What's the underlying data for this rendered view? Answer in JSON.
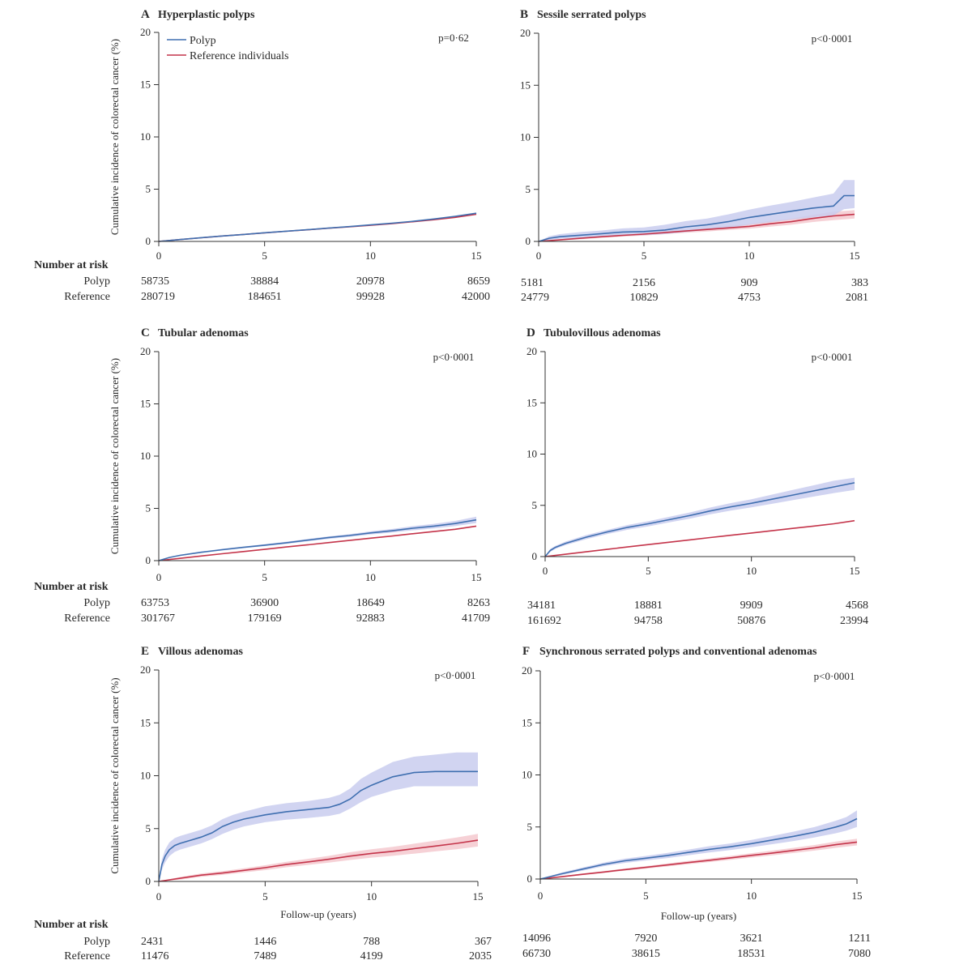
{
  "figure": {
    "ylabel": "Cumulative incidence of colorectal cancer (%)",
    "xlabel": "Follow-up (years)",
    "risk_header": "Number at risk",
    "risk_row_polyp": "Polyp",
    "risk_row_reference": "Reference",
    "legend": {
      "polyp": "Polyp",
      "reference": "Reference individuals"
    },
    "colors": {
      "polyp": "#3f6fb0",
      "reference": "#c4344a",
      "polyp_ci": "#c9cdef",
      "reference_ci": "#f5c9cf"
    }
  },
  "chart_data": [
    {
      "type": "line",
      "letter": "A",
      "title": "Hyperplastic polyps",
      "pvalue": "p=0·62",
      "xlim": [
        0,
        15
      ],
      "ylim": [
        0,
        20
      ],
      "xticks": [
        0,
        5,
        10,
        15
      ],
      "yticks": [
        0,
        5,
        10,
        15,
        20
      ],
      "legend": true,
      "ci_polyp": false,
      "ci_reference": false,
      "series": [
        {
          "name": "Polyp",
          "x": [
            0,
            1,
            2,
            3,
            4,
            5,
            6,
            7,
            8,
            9,
            10,
            11,
            12,
            13,
            14,
            15
          ],
          "y": [
            0,
            0.18,
            0.36,
            0.52,
            0.67,
            0.83,
            0.98,
            1.12,
            1.27,
            1.42,
            1.58,
            1.74,
            1.92,
            2.15,
            2.4,
            2.7
          ]
        },
        {
          "name": "Reference individuals",
          "x": [
            0,
            1,
            2,
            3,
            4,
            5,
            6,
            7,
            8,
            9,
            10,
            11,
            12,
            13,
            14,
            15
          ],
          "y": [
            0,
            0.18,
            0.35,
            0.52,
            0.67,
            0.82,
            0.97,
            1.11,
            1.26,
            1.4,
            1.54,
            1.7,
            1.88,
            2.08,
            2.3,
            2.6
          ]
        }
      ],
      "risk": {
        "years": [
          0,
          5,
          10,
          15
        ],
        "polyp": [
          "58735",
          "38884",
          "20978",
          "8659"
        ],
        "reference": [
          "280719",
          "184651",
          "99928",
          "42000"
        ]
      }
    },
    {
      "type": "line",
      "letter": "B",
      "title": "Sessile serrated polyps",
      "pvalue": "p<0·0001",
      "xlim": [
        0,
        15
      ],
      "ylim": [
        0,
        20
      ],
      "xticks": [
        0,
        5,
        10,
        15
      ],
      "yticks": [
        0,
        5,
        10,
        15,
        20
      ],
      "legend": false,
      "ci_polyp": true,
      "ci_reference": true,
      "series": [
        {
          "name": "Polyp",
          "x": [
            0,
            0.5,
            1,
            2,
            3,
            4,
            5,
            6,
            7,
            8,
            9,
            10,
            11,
            12,
            13,
            14,
            14.5,
            15
          ],
          "y": [
            0,
            0.3,
            0.45,
            0.6,
            0.75,
            0.9,
            0.95,
            1.1,
            1.4,
            1.6,
            1.9,
            2.3,
            2.6,
            2.9,
            3.2,
            3.4,
            4.4,
            4.4
          ],
          "lower": [
            0,
            0.15,
            0.25,
            0.35,
            0.45,
            0.55,
            0.6,
            0.7,
            0.9,
            1.1,
            1.3,
            1.6,
            1.85,
            2.1,
            2.3,
            2.5,
            3.1,
            3.2
          ],
          "upper": [
            0,
            0.5,
            0.7,
            0.9,
            1.05,
            1.25,
            1.35,
            1.6,
            1.95,
            2.2,
            2.6,
            3.05,
            3.45,
            3.8,
            4.2,
            4.6,
            5.9,
            5.9
          ]
        },
        {
          "name": "Reference individuals",
          "x": [
            0,
            1,
            2,
            3,
            4,
            5,
            6,
            7,
            8,
            9,
            10,
            11,
            12,
            13,
            14,
            15
          ],
          "y": [
            0,
            0.15,
            0.3,
            0.45,
            0.58,
            0.7,
            0.85,
            1.0,
            1.15,
            1.3,
            1.45,
            1.7,
            1.9,
            2.2,
            2.45,
            2.6
          ],
          "lower": [
            0,
            0.1,
            0.22,
            0.35,
            0.47,
            0.57,
            0.7,
            0.83,
            0.96,
            1.1,
            1.22,
            1.42,
            1.6,
            1.86,
            2.05,
            2.2
          ],
          "upper": [
            0,
            0.2,
            0.38,
            0.55,
            0.7,
            0.83,
            1.0,
            1.17,
            1.34,
            1.5,
            1.68,
            1.98,
            2.2,
            2.55,
            2.85,
            3.0
          ]
        }
      ],
      "risk": {
        "years": [
          0,
          5,
          10,
          15
        ],
        "polyp": [
          "5181",
          "2156",
          "909",
          "383"
        ],
        "reference": [
          "24779",
          "10829",
          "4753",
          "2081"
        ]
      }
    },
    {
      "type": "line",
      "letter": "C",
      "title": "Tubular adenomas",
      "pvalue": "p<0·0001",
      "xlim": [
        0,
        15
      ],
      "ylim": [
        0,
        20
      ],
      "xticks": [
        0,
        5,
        10,
        15
      ],
      "yticks": [
        0,
        5,
        10,
        15,
        20
      ],
      "legend": false,
      "ci_polyp": true,
      "ci_reference": false,
      "series": [
        {
          "name": "Polyp",
          "x": [
            0,
            0.5,
            1,
            2,
            3,
            4,
            5,
            6,
            7,
            8,
            9,
            10,
            11,
            12,
            13,
            14,
            15
          ],
          "y": [
            0,
            0.3,
            0.5,
            0.8,
            1.05,
            1.27,
            1.48,
            1.7,
            1.95,
            2.2,
            2.4,
            2.65,
            2.85,
            3.1,
            3.3,
            3.55,
            3.9
          ],
          "lower": [
            0,
            0.25,
            0.44,
            0.73,
            0.97,
            1.19,
            1.39,
            1.6,
            1.84,
            2.08,
            2.27,
            2.5,
            2.68,
            2.9,
            3.08,
            3.3,
            3.6
          ],
          "upper": [
            0,
            0.35,
            0.56,
            0.87,
            1.13,
            1.35,
            1.57,
            1.8,
            2.06,
            2.32,
            2.53,
            2.8,
            3.02,
            3.3,
            3.52,
            3.8,
            4.2
          ]
        },
        {
          "name": "Reference individuals",
          "x": [
            0,
            1,
            2,
            3,
            4,
            5,
            6,
            7,
            8,
            9,
            10,
            11,
            12,
            13,
            14,
            15
          ],
          "y": [
            0,
            0.22,
            0.44,
            0.66,
            0.87,
            1.08,
            1.3,
            1.5,
            1.72,
            1.93,
            2.15,
            2.35,
            2.57,
            2.78,
            3.0,
            3.3
          ]
        }
      ],
      "risk": {
        "years": [
          0,
          5,
          10,
          15
        ],
        "polyp": [
          "63753",
          "36900",
          "18649",
          "8263"
        ],
        "reference": [
          "301767",
          "179169",
          "92883",
          "41709"
        ]
      }
    },
    {
      "type": "line",
      "letter": "D",
      "title": "Tubulovillous adenomas",
      "pvalue": "p<0·0001",
      "xlim": [
        0,
        15
      ],
      "ylim": [
        0,
        20
      ],
      "xticks": [
        0,
        5,
        10,
        15
      ],
      "yticks": [
        0,
        5,
        10,
        15,
        20
      ],
      "legend": false,
      "ci_polyp": true,
      "ci_reference": false,
      "series": [
        {
          "name": "Polyp",
          "x": [
            0,
            0.25,
            0.5,
            1,
            2,
            3,
            4,
            5,
            6,
            7,
            8,
            9,
            10,
            11,
            12,
            13,
            14,
            15
          ],
          "y": [
            0,
            0.6,
            0.9,
            1.3,
            1.9,
            2.4,
            2.85,
            3.2,
            3.6,
            4.0,
            4.45,
            4.85,
            5.2,
            5.6,
            6.0,
            6.4,
            6.8,
            7.2
          ],
          "lower": [
            0,
            0.45,
            0.75,
            1.13,
            1.7,
            2.2,
            2.62,
            2.95,
            3.33,
            3.7,
            4.12,
            4.48,
            4.8,
            5.15,
            5.5,
            5.85,
            6.2,
            6.5
          ],
          "upper": [
            0,
            0.75,
            1.05,
            1.47,
            2.1,
            2.6,
            3.08,
            3.45,
            3.87,
            4.3,
            4.78,
            5.22,
            5.6,
            6.05,
            6.5,
            6.95,
            7.4,
            7.7
          ]
        },
        {
          "name": "Reference individuals",
          "x": [
            0,
            1,
            2,
            3,
            4,
            5,
            6,
            7,
            8,
            9,
            10,
            11,
            12,
            13,
            14,
            15
          ],
          "y": [
            0,
            0.23,
            0.47,
            0.7,
            0.94,
            1.17,
            1.4,
            1.63,
            1.86,
            2.08,
            2.3,
            2.52,
            2.75,
            2.97,
            3.2,
            3.5
          ]
        }
      ],
      "risk": {
        "years": [
          0,
          5,
          10,
          15
        ],
        "polyp": [
          "34181",
          "18881",
          "9909",
          "4568"
        ],
        "reference": [
          "161692",
          "94758",
          "50876",
          "23994"
        ]
      }
    },
    {
      "type": "line",
      "letter": "E",
      "title": "Villous adenomas",
      "pvalue": "p<0·0001",
      "xlim": [
        0,
        15
      ],
      "ylim": [
        0,
        20
      ],
      "xticks": [
        0,
        5,
        10,
        15
      ],
      "yticks": [
        0,
        5,
        10,
        15,
        20
      ],
      "legend": false,
      "ci_polyp": true,
      "ci_reference": true,
      "show_xlabel": true,
      "series": [
        {
          "name": "Polyp",
          "x": [
            0,
            0.15,
            0.3,
            0.5,
            0.75,
            1,
            1.5,
            2,
            2.5,
            3,
            3.5,
            4,
            4.5,
            5,
            6,
            7,
            8,
            8.5,
            9,
            9.5,
            10,
            10.5,
            11,
            12,
            13,
            14,
            15
          ],
          "y": [
            0,
            1.6,
            2.4,
            3.0,
            3.4,
            3.6,
            3.9,
            4.2,
            4.6,
            5.2,
            5.6,
            5.9,
            6.1,
            6.3,
            6.6,
            6.8,
            7.0,
            7.3,
            7.8,
            8.6,
            9.1,
            9.5,
            9.9,
            10.3,
            10.4,
            10.4,
            10.4
          ],
          "lower": [
            0,
            1.1,
            1.8,
            2.4,
            2.8,
            3.0,
            3.3,
            3.6,
            4.0,
            4.5,
            4.9,
            5.2,
            5.4,
            5.6,
            5.85,
            6.0,
            6.2,
            6.4,
            6.9,
            7.5,
            8.0,
            8.3,
            8.6,
            9.0,
            9.0,
            9.0,
            9.0
          ],
          "upper": [
            0,
            2.1,
            3.0,
            3.7,
            4.1,
            4.3,
            4.6,
            4.9,
            5.3,
            5.9,
            6.3,
            6.6,
            6.85,
            7.1,
            7.4,
            7.6,
            7.9,
            8.2,
            8.8,
            9.7,
            10.3,
            10.8,
            11.3,
            11.8,
            12.0,
            12.2,
            12.2
          ]
        },
        {
          "name": "Reference individuals",
          "x": [
            0,
            1,
            2,
            3,
            4,
            5,
            6,
            7,
            8,
            9,
            10,
            11,
            12,
            13,
            14,
            15
          ],
          "y": [
            0,
            0.3,
            0.6,
            0.8,
            1.05,
            1.3,
            1.6,
            1.85,
            2.1,
            2.4,
            2.65,
            2.85,
            3.1,
            3.35,
            3.6,
            3.9
          ],
          "lower": [
            0,
            0.18,
            0.44,
            0.62,
            0.85,
            1.07,
            1.34,
            1.56,
            1.78,
            2.03,
            2.25,
            2.42,
            2.63,
            2.84,
            3.05,
            3.3
          ],
          "upper": [
            0,
            0.42,
            0.76,
            0.98,
            1.25,
            1.53,
            1.86,
            2.14,
            2.42,
            2.77,
            3.05,
            3.28,
            3.57,
            3.86,
            4.15,
            4.5
          ]
        }
      ],
      "risk": {
        "years": [
          0,
          5,
          10,
          15
        ],
        "polyp": [
          "2431",
          "1446",
          "788",
          "367"
        ],
        "reference": [
          "11476",
          "7489",
          "4199",
          "2035"
        ]
      }
    },
    {
      "type": "line",
      "letter": "F",
      "title": "Synchronous serrated polyps and conventional adenomas",
      "pvalue": "p<0·0001",
      "xlim": [
        0,
        15
      ],
      "ylim": [
        0,
        20
      ],
      "xticks": [
        0,
        5,
        10,
        15
      ],
      "yticks": [
        0,
        5,
        10,
        15,
        20
      ],
      "legend": false,
      "ci_polyp": true,
      "ci_reference": true,
      "show_xlabel": true,
      "series": [
        {
          "name": "Polyp",
          "x": [
            0,
            1,
            2,
            3,
            4,
            5,
            6,
            7,
            8,
            9,
            10,
            11,
            12,
            13,
            14,
            14.5,
            15
          ],
          "y": [
            0,
            0.5,
            0.95,
            1.4,
            1.75,
            2.0,
            2.25,
            2.55,
            2.85,
            3.1,
            3.4,
            3.75,
            4.1,
            4.5,
            5.0,
            5.3,
            5.8
          ],
          "lower": [
            0,
            0.38,
            0.8,
            1.22,
            1.55,
            1.78,
            2.0,
            2.28,
            2.55,
            2.78,
            3.05,
            3.35,
            3.65,
            4.0,
            4.4,
            4.65,
            5.0
          ],
          "upper": [
            0,
            0.62,
            1.1,
            1.58,
            1.95,
            2.22,
            2.5,
            2.82,
            3.15,
            3.42,
            3.75,
            4.15,
            4.55,
            5.0,
            5.6,
            5.95,
            6.6
          ]
        },
        {
          "name": "Reference individuals",
          "x": [
            0,
            1,
            2,
            3,
            4,
            5,
            6,
            7,
            8,
            9,
            10,
            11,
            12,
            13,
            14,
            15
          ],
          "y": [
            0,
            0.22,
            0.45,
            0.67,
            0.9,
            1.12,
            1.35,
            1.58,
            1.8,
            2.03,
            2.27,
            2.5,
            2.75,
            3.0,
            3.3,
            3.55
          ],
          "lower": [
            0,
            0.16,
            0.37,
            0.58,
            0.79,
            1.0,
            1.21,
            1.42,
            1.63,
            1.84,
            2.06,
            2.27,
            2.5,
            2.73,
            3.0,
            3.23
          ],
          "upper": [
            0,
            0.28,
            0.53,
            0.76,
            1.01,
            1.24,
            1.49,
            1.74,
            1.97,
            2.22,
            2.48,
            2.73,
            3.0,
            3.27,
            3.6,
            3.87
          ]
        }
      ],
      "risk": {
        "years": [
          0,
          5,
          10,
          15
        ],
        "polyp": [
          "14096",
          "7920",
          "3621",
          "1211"
        ],
        "reference": [
          "66730",
          "38615",
          "18531",
          "7080"
        ]
      }
    }
  ]
}
